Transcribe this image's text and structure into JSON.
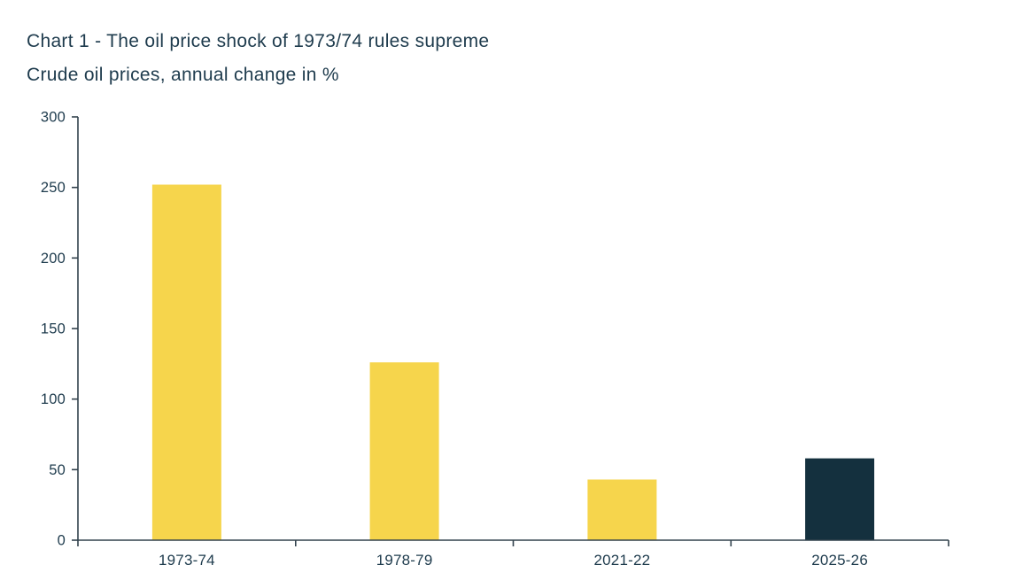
{
  "header": {
    "title": "Chart 1 - The oil price shock of 1973/74 rules supreme",
    "subtitle": "Crude oil prices, annual change in %"
  },
  "chart_data": {
    "type": "bar",
    "title": "Chart 1 - The oil price shock of 1973/74 rules supreme",
    "subtitle": "Crude oil prices, annual change in %",
    "categories": [
      "1973-74",
      "1978-79",
      "2021-22",
      "2025-26"
    ],
    "values": [
      252,
      126,
      43,
      58
    ],
    "bar_colors": [
      "#f6d54c",
      "#f6d54c",
      "#f6d54c",
      "#14303e"
    ],
    "xlabel": "",
    "ylabel": "",
    "ylim": [
      0,
      300
    ],
    "yticks": [
      0,
      50,
      100,
      150,
      200,
      250,
      300
    ],
    "grid": false,
    "legend": "none",
    "axis_color": "#32424d",
    "text_color": "#1e3b4d",
    "background": "#ffffff"
  }
}
